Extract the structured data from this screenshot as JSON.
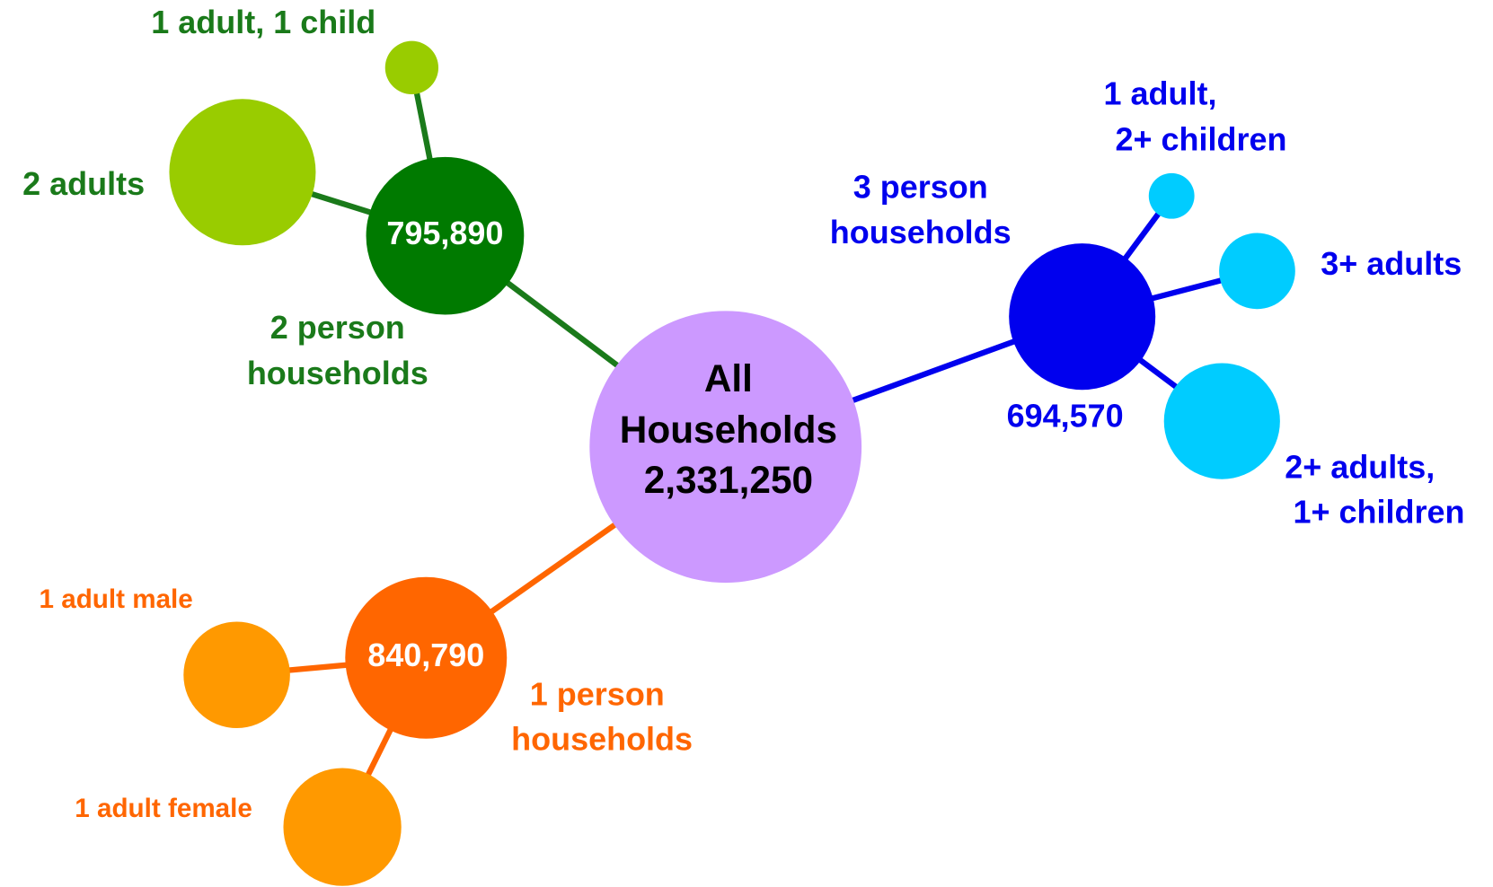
{
  "center": {
    "label": [
      "All",
      "Households"
    ],
    "value": "2,331,250"
  },
  "groups": [
    {
      "label": [
        "2 person",
        "households"
      ],
      "value": "795,890",
      "children": [
        {
          "label": [
            "2 adults"
          ]
        },
        {
          "label": [
            "1 adult, 1 child"
          ]
        }
      ]
    },
    {
      "label": [
        "1 person",
        "households"
      ],
      "value": "840,790",
      "children": [
        {
          "label": [
            "1 adult male"
          ]
        },
        {
          "label": [
            "1 adult female"
          ]
        }
      ]
    },
    {
      "label": [
        "3 person",
        "households"
      ],
      "value": "694,570",
      "children": [
        {
          "label": [
            "1 adult,",
            "2+ children"
          ]
        },
        {
          "label": [
            "3+ adults"
          ]
        },
        {
          "label": [
            "2+ adults,",
            "1+ children"
          ]
        }
      ]
    }
  ]
}
